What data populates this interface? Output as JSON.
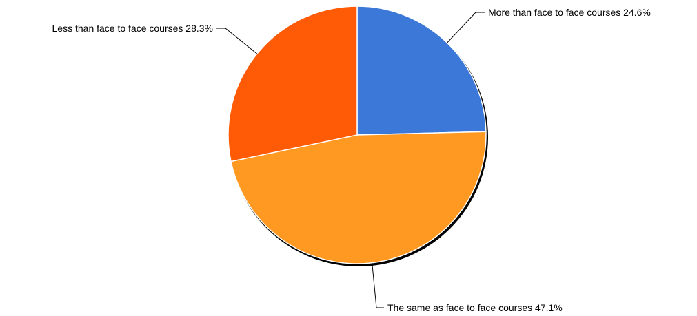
{
  "chart_data": {
    "type": "pie",
    "title": "",
    "slices": [
      {
        "label": "More than face to face courses",
        "value": 24.6,
        "display": "More than face to face courses 24.6%",
        "color": "#3c78d8"
      },
      {
        "label": "The same as face to face courses",
        "value": 47.1,
        "display": "The same as face to face courses 47.1%",
        "color": "#ff9922"
      },
      {
        "label": "Less than face to face courses",
        "value": 28.3,
        "display": "Less than face to face courses 28.3%",
        "color": "#ff5a05"
      }
    ],
    "start_angle": "12 o'clock",
    "direction": "clockwise",
    "legend": "none",
    "labels": "outside with leader lines"
  }
}
